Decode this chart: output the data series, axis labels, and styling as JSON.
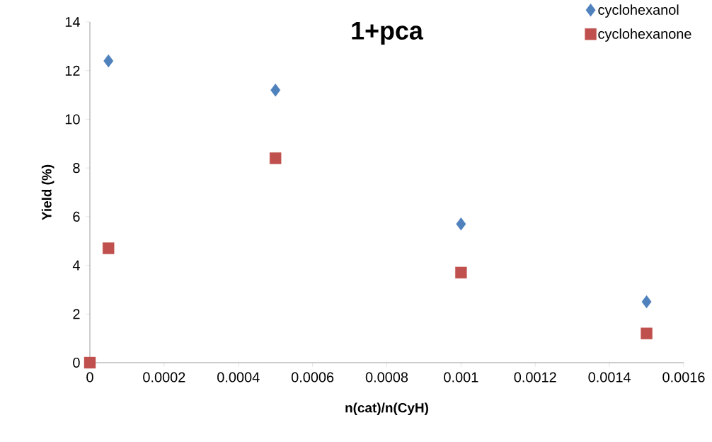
{
  "chart_data": {
    "type": "scatter",
    "title": "1+pca",
    "xlabel": "n(cat)/n(CyH)",
    "ylabel": "Yield (%)",
    "xlim": [
      0,
      0.0016
    ],
    "ylim": [
      0,
      14
    ],
    "xticks": [
      0,
      0.0002,
      0.0004,
      0.0006,
      0.0008,
      0.001,
      0.0012,
      0.0014,
      0.0016
    ],
    "yticks": [
      0,
      2,
      4,
      6,
      8,
      10,
      12,
      14
    ],
    "grid": false,
    "legend": "top right",
    "series": [
      {
        "name": "cyclohexanol",
        "color": "#4f81bd",
        "marker": "diamond",
        "x": [
          5e-05,
          0.0005,
          0.001,
          0.0015
        ],
        "values": [
          12.4,
          11.2,
          5.7,
          2.5
        ]
      },
      {
        "name": "cyclohexanone",
        "color": "#c0504d",
        "marker": "square",
        "x": [
          0,
          5e-05,
          0.0005,
          0.001,
          0.0015
        ],
        "values": [
          0,
          4.7,
          8.4,
          3.7,
          1.2
        ]
      }
    ]
  }
}
